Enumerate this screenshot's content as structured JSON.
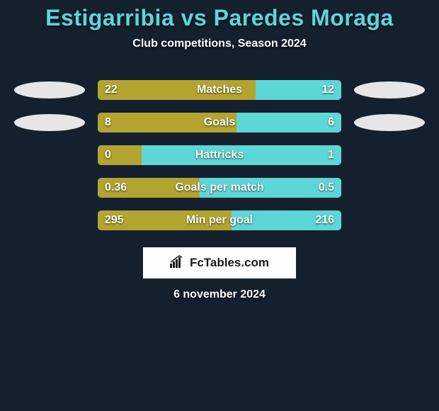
{
  "header": {
    "title": "Estigarribia vs Paredes Moraga",
    "subtitle": "Club competitions, Season 2024"
  },
  "colors": {
    "left_bar": "#b2a42f",
    "right_bar": "#5dd6d6",
    "bar_bg": "#6a6a6a",
    "blob": "#e6e6e6",
    "background": "#15202f",
    "title": "#5dd6d6",
    "text": "#ffffff"
  },
  "rows": [
    {
      "label": "Matches",
      "left_value": "22",
      "right_value": "12",
      "left_pct": 64.7,
      "right_pct": 35.3,
      "show_blobs": true
    },
    {
      "label": "Goals",
      "left_value": "8",
      "right_value": "6",
      "left_pct": 57.1,
      "right_pct": 42.9,
      "show_blobs": true
    },
    {
      "label": "Hattricks",
      "left_value": "0",
      "right_value": "1",
      "left_pct": 18,
      "right_pct": 82,
      "show_blobs": false
    },
    {
      "label": "Goals per match",
      "left_value": "0.36",
      "right_value": "0.5",
      "left_pct": 41.9,
      "right_pct": 58.1,
      "show_blobs": false
    },
    {
      "label": "Min per goal",
      "left_value": "295",
      "right_value": "216",
      "left_pct": 55,
      "right_pct": 45,
      "show_blobs": false
    }
  ],
  "footer": {
    "logo_text": "FcTables.com",
    "date": "6 november 2024"
  }
}
